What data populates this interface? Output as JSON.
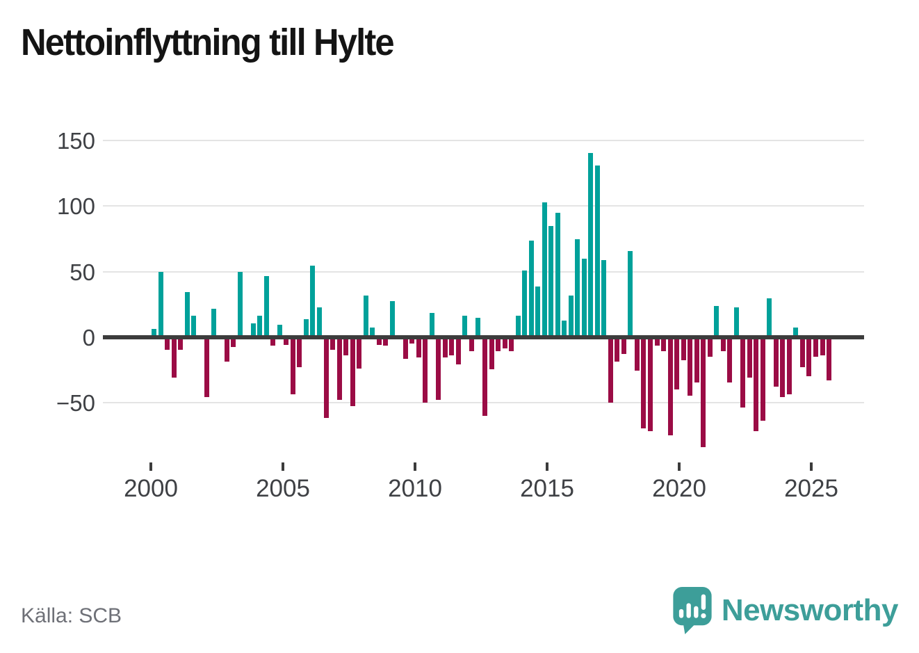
{
  "title": "Nettoinflyttning till Hylte",
  "source": "Källa: SCB",
  "brand": {
    "name": "Newsworthy"
  },
  "colors": {
    "positive": "#00a19a",
    "negative": "#9b0c45",
    "axis": "#3c3c3c",
    "grid": "#e4e4e4",
    "logo": "#3d9e99"
  },
  "chart_data": {
    "type": "bar",
    "title": "Nettoinflyttning till Hylte",
    "xlabel": "",
    "ylabel": "",
    "frequency": "quarterly",
    "start_year": 2000,
    "start_quarter": 1,
    "ylim": [
      -90,
      160
    ],
    "grid": true,
    "y_ticks": [
      150,
      100,
      50,
      0,
      -50
    ],
    "y_tick_labels": [
      "150",
      "100",
      "50",
      "0",
      "−50"
    ],
    "x_ticks": [
      2000,
      2005,
      2010,
      2015,
      2020,
      2025
    ],
    "x_tick_labels": [
      "2000",
      "2005",
      "2010",
      "2015",
      "2020",
      "2025"
    ],
    "series": [
      {
        "name": "Nettoinflyttning",
        "values": [
          5,
          48,
          -8,
          -29,
          -8,
          33,
          15,
          0,
          -44,
          20,
          0,
          -17,
          -6,
          48,
          0,
          9,
          15,
          45,
          -5,
          8,
          -4,
          -42,
          -21,
          12,
          53,
          21,
          -60,
          -8,
          -46,
          -12,
          -51,
          -22,
          30,
          6,
          -4,
          -5,
          26,
          0,
          -15,
          -3,
          -14,
          -48,
          17,
          -46,
          -14,
          -12,
          -19,
          15,
          -9,
          13,
          -58,
          -23,
          -9,
          -7,
          -9,
          15,
          49,
          72,
          37,
          101,
          83,
          93,
          11,
          30,
          73,
          58,
          139,
          129,
          57,
          -48,
          -17,
          -11,
          64,
          -24,
          -68,
          -70,
          -5,
          -9,
          -73,
          -38,
          -16,
          -43,
          -33,
          -82,
          -13,
          22,
          -9,
          -33,
          21,
          -52,
          -29,
          -70,
          -62,
          28,
          -36,
          -44,
          -42,
          6,
          -21,
          -28,
          -13,
          -12,
          -31
        ]
      }
    ]
  }
}
